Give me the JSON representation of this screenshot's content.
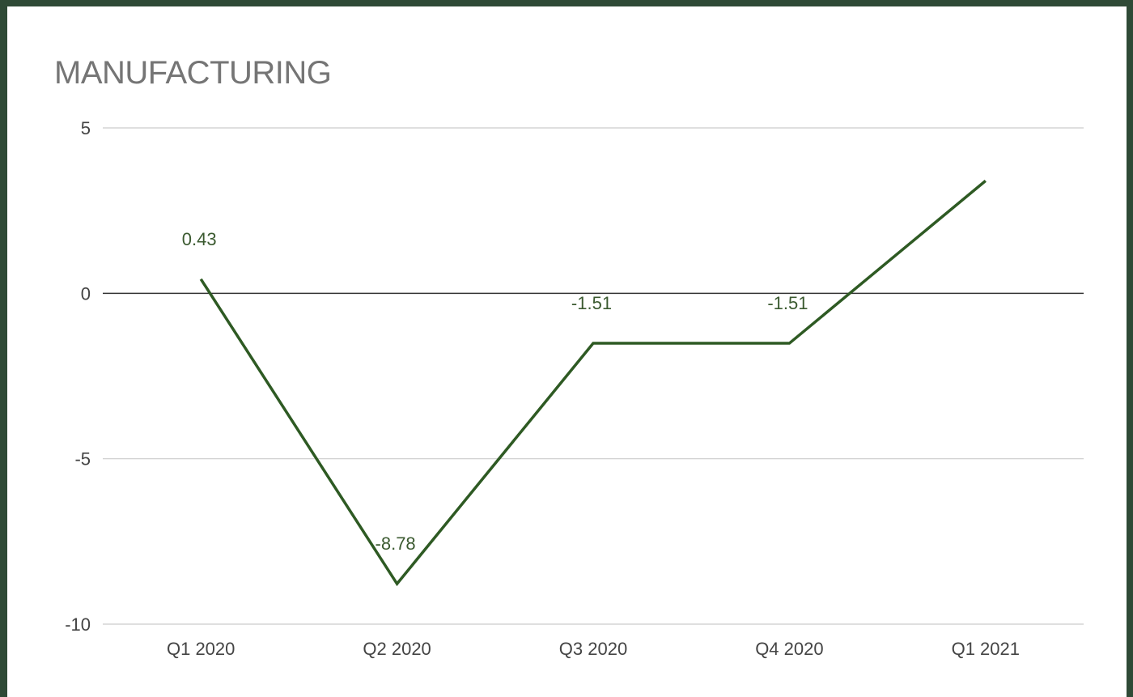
{
  "chart_data": {
    "type": "line",
    "title": "MANUFACTURING",
    "xlabel": "",
    "ylabel": "",
    "categories": [
      "Q1 2020",
      "Q2 2020",
      "Q3 2020",
      "Q4 2020",
      "Q1 2021"
    ],
    "series": [
      {
        "values": [
          0.43,
          -8.78,
          -1.51,
          -1.51,
          3.4
        ],
        "labels": [
          "0.43",
          "-8.78",
          "-1.51",
          "-1.51",
          ""
        ]
      }
    ],
    "ylim": [
      -10,
      5
    ],
    "yticks": [
      "5",
      "0",
      "-5",
      "-10"
    ],
    "yticks_values": [
      5,
      0,
      -5,
      -10
    ],
    "grid": true,
    "legend": "none",
    "line_color": "#2e5a23",
    "zero_line_color": "#333333",
    "grid_color": "#cccccc"
  }
}
